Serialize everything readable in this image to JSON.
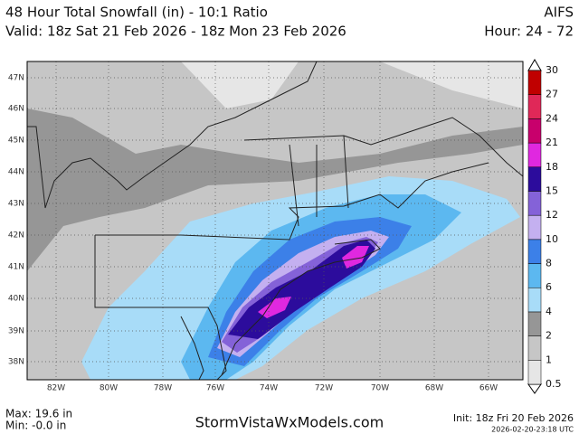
{
  "header": {
    "title": "48 Hour Total Snowfall (in) - 10:1 Ratio",
    "model": "AIFS",
    "valid": "Valid: 18z Sat 21 Feb 2026 - 18z Mon 23 Feb 2026",
    "hours": "Hour: 24 - 72"
  },
  "map": {
    "lat_labels": [
      "47N",
      "46N",
      "45N",
      "44N",
      "43N",
      "42N",
      "41N",
      "40N",
      "39N",
      "38N"
    ],
    "lon_labels": [
      "82W",
      "80W",
      "78W",
      "76W",
      "74W",
      "72W",
      "70W",
      "68W",
      "66W"
    ]
  },
  "colorbar": {
    "levels": [
      0.5,
      1,
      2,
      4,
      6,
      8,
      10,
      12,
      15,
      18,
      21,
      24,
      27,
      30
    ],
    "colors": [
      "#e6e6e6",
      "#c6c6c6",
      "#969696",
      "#a8dcf8",
      "#5cb8f0",
      "#3c80e8",
      "#c4b0f0",
      "#8462d8",
      "#2c0c9c",
      "#e028e0",
      "#c8006c",
      "#e02858",
      "#c00000"
    ]
  },
  "footer": {
    "max": "Max: 19.6 in",
    "min": "Min: -0.0 in",
    "site": "StormVistaWxModels.com",
    "init": "Init: 18z Fri 20 Feb 2026",
    "stamp": "2026-02-20-23:18 UTC"
  }
}
